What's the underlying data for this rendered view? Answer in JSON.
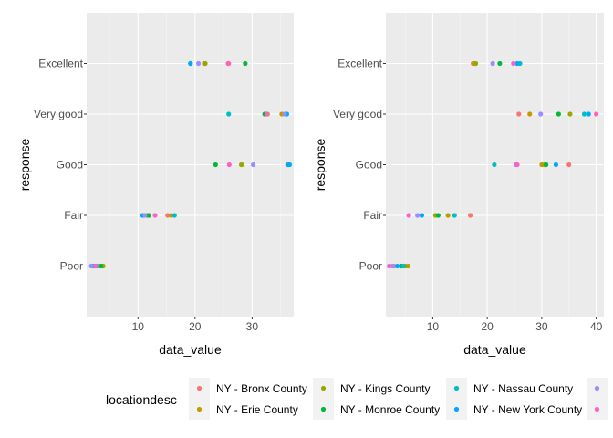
{
  "chart_data": {
    "type": "scatter",
    "categories": [
      "Poor",
      "Fair",
      "Good",
      "Very good",
      "Excellent"
    ],
    "xlabel": "data_value",
    "ylabel": "response",
    "grid": true,
    "legend": {
      "title": "locationdesc",
      "placement": "bottom",
      "entries": [
        {
          "name": "NY - Bronx County",
          "color": "#F8766D"
        },
        {
          "name": "NY - Erie County",
          "color": "#C49A00"
        },
        {
          "name": "NY - Kings County",
          "color": "#99A800"
        },
        {
          "name": "NY - Monroe County",
          "color": "#00BA38"
        },
        {
          "name": "NY - Nassau County",
          "color": "#00BFC4"
        },
        {
          "name": "NY - New York County",
          "color": "#00A9FF"
        },
        {
          "name": "",
          "color": "#9590FF"
        },
        {
          "name": "",
          "color": "#FF61C3"
        }
      ]
    },
    "panels": [
      {
        "xlim": [
          1,
          37.3
        ],
        "xticks": [
          10,
          20,
          30
        ],
        "series": [
          {
            "color": "#F8766D",
            "points": [
              [
                "Excellent",
                25.8
              ],
              [
                "Very good",
                32.4
              ],
              [
                "Good",
                36.2
              ],
              [
                "Fair",
                15.2
              ],
              [
                "Poor",
                2.3
              ]
            ]
          },
          {
            "color": "#C49A00",
            "points": [
              [
                "Excellent",
                21.6
              ],
              [
                "Very good",
                35.2
              ],
              [
                "Good",
                28.1
              ],
              [
                "Fair",
                15.8
              ],
              [
                "Poor",
                3.8
              ]
            ]
          },
          {
            "color": "#99A800",
            "points": [
              [
                "Excellent",
                21.8
              ],
              [
                "Very good",
                32.7
              ],
              [
                "Good",
                28.2
              ],
              [
                "Fair",
                11.6
              ],
              [
                "Poor",
                3.9
              ]
            ]
          },
          {
            "color": "#00BA38",
            "points": [
              [
                "Excellent",
                28.8
              ],
              [
                "Very good",
                32.2
              ],
              [
                "Good",
                23.6
              ],
              [
                "Fair",
                11.9
              ],
              [
                "Poor",
                3.5
              ]
            ]
          },
          {
            "color": "#00BFC4",
            "points": [
              [
                "Excellent",
                19.2
              ],
              [
                "Very good",
                25.9
              ],
              [
                "Good",
                36.6
              ],
              [
                "Fair",
                16.4
              ],
              [
                "Poor",
                2.8
              ]
            ]
          },
          {
            "color": "#00A9FF",
            "points": [
              [
                "Excellent",
                19.2
              ],
              [
                "Very good",
                36.1
              ],
              [
                "Good",
                36.4
              ],
              [
                "Fair",
                10.8
              ],
              [
                "Poor",
                2.0
              ]
            ]
          },
          {
            "color": "#9590FF",
            "points": [
              [
                "Excellent",
                20.6
              ],
              [
                "Very good",
                35.7
              ],
              [
                "Good",
                30.2
              ],
              [
                "Fair",
                11.2
              ],
              [
                "Poor",
                1.8
              ]
            ]
          },
          {
            "color": "#FF61C3",
            "points": [
              [
                "Excellent",
                25.9
              ],
              [
                "Very good",
                32.6
              ],
              [
                "Good",
                26.0
              ],
              [
                "Fair",
                13.0
              ],
              [
                "Poor",
                2.6
              ]
            ]
          }
        ]
      },
      {
        "xlim": [
          1.4,
          41.4
        ],
        "xticks": [
          10,
          20,
          30,
          40
        ],
        "series": [
          {
            "color": "#F8766D",
            "points": [
              [
                "Excellent",
                17.4
              ],
              [
                "Very good",
                25.8
              ],
              [
                "Good",
                35.0
              ],
              [
                "Fair",
                16.9
              ],
              [
                "Poor",
                2.9
              ]
            ]
          },
          {
            "color": "#C49A00",
            "points": [
              [
                "Excellent",
                17.6
              ],
              [
                "Very good",
                27.8
              ],
              [
                "Good",
                30.0
              ],
              [
                "Fair",
                12.8
              ],
              [
                "Poor",
                5.5
              ]
            ]
          },
          {
            "color": "#99A800",
            "points": [
              [
                "Excellent",
                17.9
              ],
              [
                "Very good",
                35.2
              ],
              [
                "Good",
                30.5
              ],
              [
                "Fair",
                10.5
              ],
              [
                "Poor",
                5.0
              ]
            ]
          },
          {
            "color": "#00BA38",
            "points": [
              [
                "Excellent",
                22.3
              ],
              [
                "Very good",
                33.1
              ],
              [
                "Good",
                30.8
              ],
              [
                "Fair",
                11.0
              ],
              [
                "Poor",
                4.2
              ]
            ]
          },
          {
            "color": "#00BFC4",
            "points": [
              [
                "Excellent",
                26.0
              ],
              [
                "Very good",
                37.8
              ],
              [
                "Good",
                21.3
              ],
              [
                "Fair",
                14.0
              ],
              [
                "Poor",
                4.6
              ]
            ]
          },
          {
            "color": "#00A9FF",
            "points": [
              [
                "Excellent",
                25.5
              ],
              [
                "Very good",
                38.6
              ],
              [
                "Good",
                32.6
              ],
              [
                "Fair",
                8.0
              ],
              [
                "Poor",
                3.5
              ]
            ]
          },
          {
            "color": "#9590FF",
            "points": [
              [
                "Excellent",
                21.0
              ],
              [
                "Very good",
                29.8
              ],
              [
                "Good",
                25.3
              ],
              [
                "Fair",
                7.2
              ],
              [
                "Poor",
                2.6
              ]
            ]
          },
          {
            "color": "#FF61C3",
            "points": [
              [
                "Excellent",
                24.8
              ],
              [
                "Very good",
                40.0
              ],
              [
                "Good",
                25.5
              ],
              [
                "Fair",
                5.6
              ],
              [
                "Poor",
                2.0
              ]
            ]
          }
        ]
      }
    ]
  }
}
